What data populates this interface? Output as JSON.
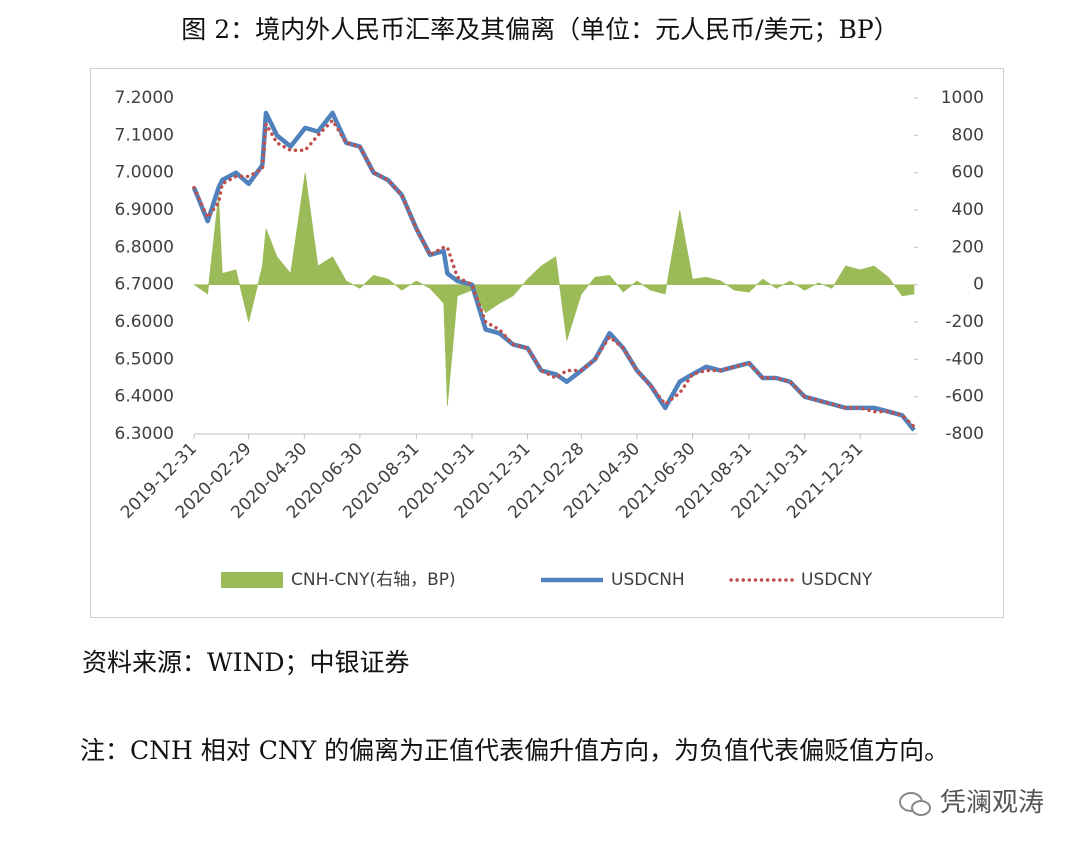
{
  "title": "图 2：境内外人民币汇率及其偏离（单位：元人民币/美元；BP）",
  "source": "资料来源：WIND；中银证券",
  "note": "注：CNH 相对 CNY 的偏离为正值代表偏升值方向，为负值代表偏贬值方向。",
  "watermark": "凭澜观涛",
  "chart_data": {
    "type": "line",
    "x": [
      "2019-12-31",
      "2020-01-15",
      "2020-01-27",
      "2020-01-31",
      "2020-02-15",
      "2020-02-29",
      "2020-03-15",
      "2020-03-19",
      "2020-03-31",
      "2020-04-15",
      "2020-05-01",
      "2020-05-15",
      "2020-05-31",
      "2020-06-15",
      "2020-06-30",
      "2020-07-15",
      "2020-07-31",
      "2020-08-15",
      "2020-08-31",
      "2020-09-15",
      "2020-09-30",
      "2020-10-04",
      "2020-10-15",
      "2020-10-31",
      "2020-11-15",
      "2020-11-30",
      "2020-12-15",
      "2020-12-31",
      "2021-01-15",
      "2021-01-31",
      "2021-02-12",
      "2021-02-28",
      "2021-03-15",
      "2021-03-31",
      "2021-04-15",
      "2021-04-30",
      "2021-05-15",
      "2021-05-31",
      "2021-06-16",
      "2021-06-30",
      "2021-07-15",
      "2021-07-31",
      "2021-08-15",
      "2021-08-31",
      "2021-09-15",
      "2021-09-30",
      "2021-10-15",
      "2021-10-31",
      "2021-11-15",
      "2021-11-30",
      "2021-12-15",
      "2021-12-31",
      "2022-01-15",
      "2022-01-31",
      "2022-02-15",
      "2022-02-28"
    ],
    "series": [
      {
        "name": "CNH-CNY(右轴，BP)",
        "color": "#9bbb59",
        "axis": "y2",
        "style": "area",
        "values": [
          0,
          -50,
          480,
          60,
          80,
          -200,
          100,
          300,
          150,
          60,
          600,
          100,
          150,
          20,
          -20,
          50,
          30,
          -30,
          20,
          -20,
          -100,
          -650,
          -60,
          -30,
          -150,
          -100,
          -60,
          30,
          100,
          150,
          -300,
          -50,
          40,
          50,
          -40,
          20,
          -30,
          -50,
          400,
          30,
          40,
          20,
          -30,
          -40,
          30,
          -20,
          20,
          -30,
          10,
          -20,
          100,
          80,
          100,
          40,
          -60,
          -50
        ]
      },
      {
        "name": "USDCNH",
        "color": "#4f81bd",
        "style": "solid",
        "values": [
          6.96,
          6.87,
          6.96,
          6.98,
          7.0,
          6.97,
          7.02,
          7.16,
          7.1,
          7.07,
          7.12,
          7.11,
          7.16,
          7.08,
          7.07,
          7.0,
          6.98,
          6.94,
          6.85,
          6.78,
          6.79,
          6.73,
          6.71,
          6.7,
          6.58,
          6.57,
          6.54,
          6.53,
          6.47,
          6.46,
          6.44,
          6.47,
          6.5,
          6.57,
          6.53,
          6.47,
          6.43,
          6.37,
          6.44,
          6.46,
          6.48,
          6.47,
          6.48,
          6.49,
          6.45,
          6.45,
          6.44,
          6.4,
          6.39,
          6.38,
          6.37,
          6.37,
          6.37,
          6.36,
          6.35,
          6.31
        ]
      },
      {
        "name": "USDCNY",
        "color": "#c0504d",
        "style": "dotted",
        "values": [
          6.96,
          6.88,
          6.92,
          6.97,
          6.99,
          6.99,
          7.01,
          7.13,
          7.08,
          7.06,
          7.06,
          7.1,
          7.14,
          7.08,
          7.07,
          7.0,
          6.98,
          6.94,
          6.85,
          6.78,
          6.8,
          6.8,
          6.72,
          6.7,
          6.6,
          6.58,
          6.54,
          6.53,
          6.47,
          6.45,
          6.47,
          6.47,
          6.5,
          6.56,
          6.53,
          6.47,
          6.43,
          6.38,
          6.41,
          6.46,
          6.47,
          6.47,
          6.48,
          6.49,
          6.45,
          6.45,
          6.44,
          6.4,
          6.39,
          6.38,
          6.37,
          6.37,
          6.36,
          6.36,
          6.35,
          6.32
        ]
      }
    ],
    "xlim": [
      "2019-12-31",
      "2022-02-28"
    ],
    "xticks": [
      "2019-12-31",
      "2020-02-29",
      "2020-04-30",
      "2020-06-30",
      "2020-08-31",
      "2020-10-31",
      "2020-12-31",
      "2021-02-28",
      "2021-04-30",
      "2021-06-30",
      "2021-08-31",
      "2021-10-31",
      "2021-12-31"
    ],
    "ylim": [
      6.3,
      7.2
    ],
    "yticks": [
      {
        "value": 6.3,
        "label": "6.3000"
      },
      {
        "value": 6.4,
        "label": "6.4000"
      },
      {
        "value": 6.5,
        "label": "6.5000"
      },
      {
        "value": 6.6,
        "label": "6.6000"
      },
      {
        "value": 6.7,
        "label": "6.7000"
      },
      {
        "value": 6.8,
        "label": "6.8000"
      },
      {
        "value": 6.9,
        "label": "6.9000"
      },
      {
        "value": 7.0,
        "label": "7.0000"
      },
      {
        "value": 7.1,
        "label": "7.1000"
      },
      {
        "value": 7.2,
        "label": "7.2000"
      }
    ],
    "y2lim": [
      -800,
      1000
    ],
    "y2ticks": [
      -800,
      -600,
      -400,
      -200,
      0,
      200,
      400,
      600,
      800,
      1000
    ],
    "grid": false,
    "legend": "bottom"
  }
}
